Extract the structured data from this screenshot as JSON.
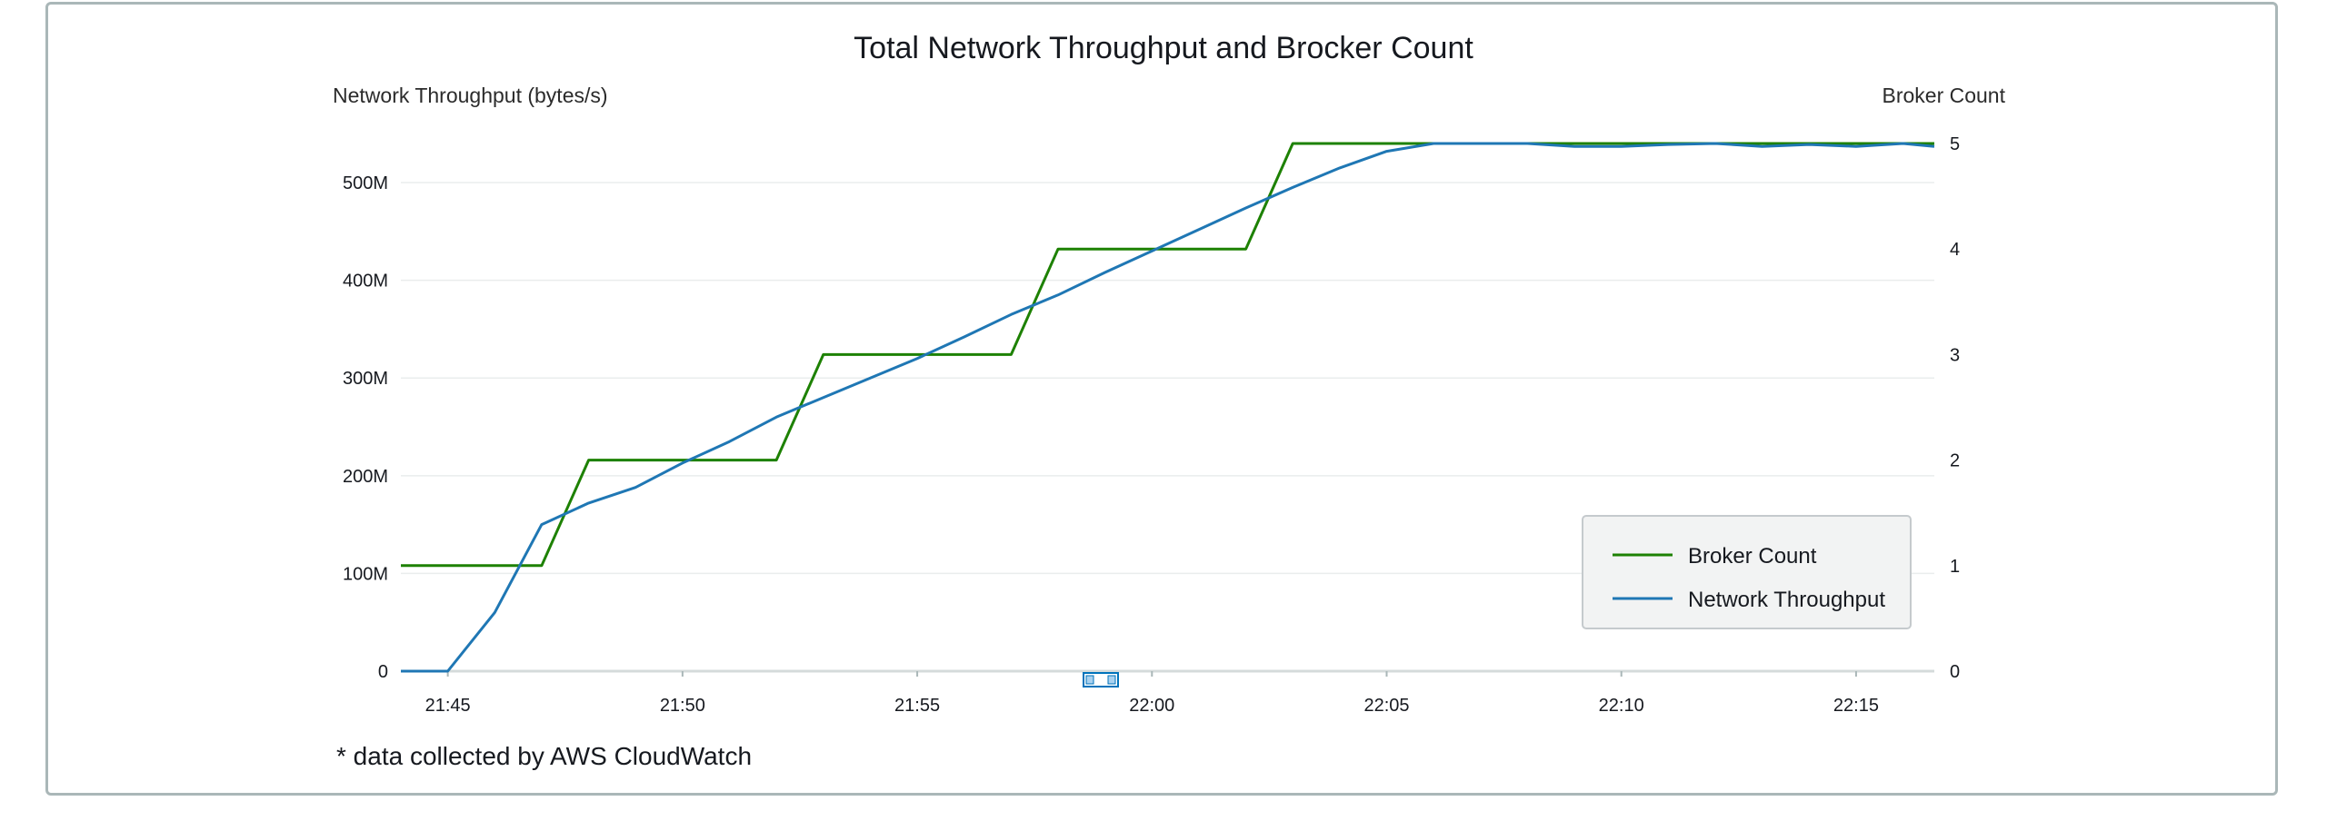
{
  "footnote": "* data collected by AWS CloudWatch",
  "chart_data": {
    "type": "line",
    "title": "Total Network Throughput and Brocker Count",
    "xlabel": "",
    "y_left_label": "Network Throughput (bytes/s)",
    "y_right_label": "Broker Count",
    "x_tick_labels": [
      "21:45",
      "21:50",
      "21:55",
      "22:00",
      "22:05",
      "22:10",
      "22:15"
    ],
    "x_range": [
      "21:44",
      "22:16:40"
    ],
    "y_left_ticks": [
      "0",
      "100M",
      "200M",
      "300M",
      "400M",
      "500M"
    ],
    "y_left_range": [
      0,
      540000000
    ],
    "y_right_ticks": [
      "0",
      "1",
      "2",
      "3",
      "4",
      "5"
    ],
    "y_right_range": [
      0,
      5
    ],
    "grid": true,
    "legend_position": "bottom-right",
    "series": [
      {
        "name": "Broker Count",
        "axis": "right",
        "color": "#1d8102",
        "x": [
          "21:44",
          "21:47",
          "21:48",
          "21:52",
          "21:53",
          "21:57",
          "21:58",
          "22:02",
          "22:03",
          "22:16:40"
        ],
        "values": [
          1,
          1,
          2,
          2,
          3,
          3,
          4,
          4,
          5,
          5
        ]
      },
      {
        "name": "Network Throughput",
        "axis": "left",
        "color": "#1f77b4",
        "x": [
          "21:44",
          "21:45",
          "21:46",
          "21:47",
          "21:48",
          "21:49",
          "21:50",
          "21:51",
          "21:52",
          "21:53",
          "21:54",
          "21:55",
          "21:56",
          "21:57",
          "21:58",
          "21:59",
          "22:00",
          "22:01",
          "22:02",
          "22:03",
          "22:04",
          "22:05",
          "22:06",
          "22:07",
          "22:08",
          "22:09",
          "22:10",
          "22:11",
          "22:12",
          "22:13",
          "22:14",
          "22:15",
          "22:16",
          "22:16:40"
        ],
        "values": [
          0,
          0,
          60000000,
          150000000,
          172000000,
          188000000,
          213000000,
          235000000,
          260000000,
          280000000,
          300000000,
          320000000,
          342000000,
          365000000,
          385000000,
          408000000,
          430000000,
          452000000,
          474000000,
          495000000,
          515000000,
          532000000,
          540000000,
          540000000,
          540000000,
          537000000,
          537000000,
          539000000,
          540000000,
          537000000,
          539000000,
          537000000,
          540000000,
          537000000
        ]
      }
    ]
  }
}
